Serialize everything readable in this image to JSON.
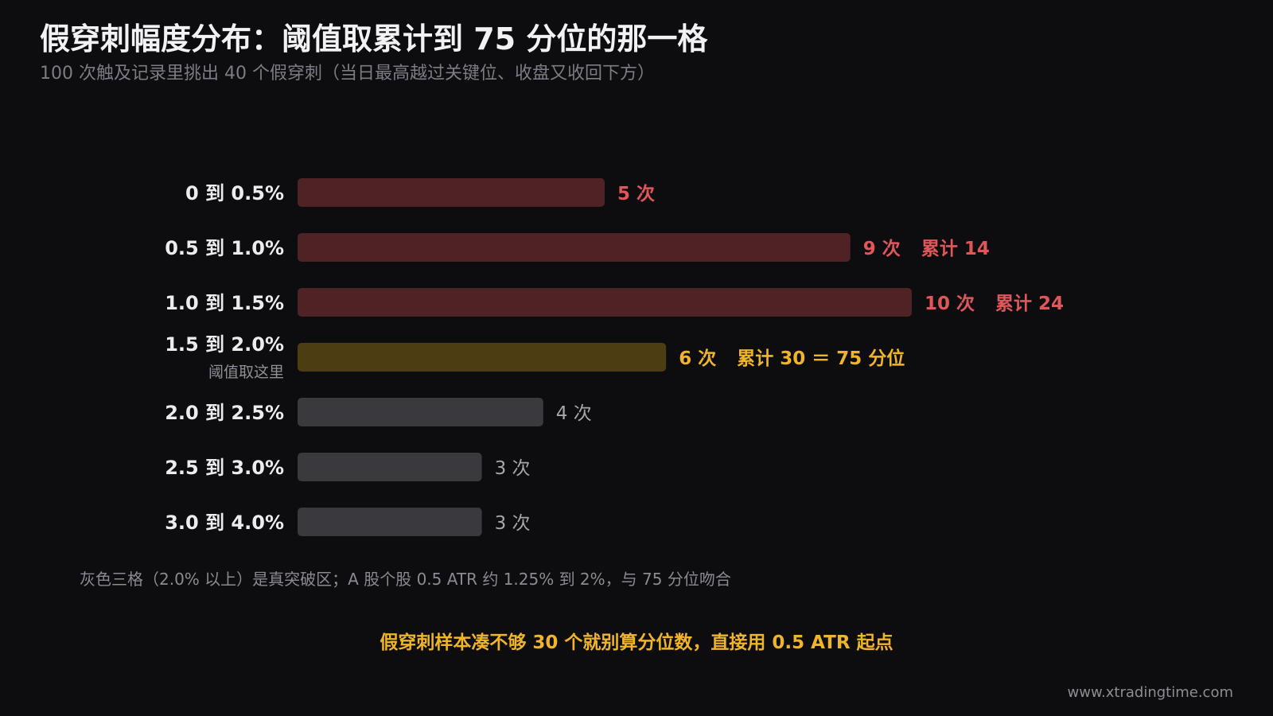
{
  "header": {
    "title": "假穿刺幅度分布：阈值取累计到 75 分位的那一格",
    "subtitle": "100 次触及记录里挑出 40 个假穿刺（当日最高越过关键位、收盘又收回下方）"
  },
  "footer": {
    "note": "灰色三格（2.0% 以上）是真突破区；A 股个股 0.5 ATR 约 1.25% 到 2%，与 75 分位吻合",
    "takeaway": "假穿刺样本凑不够 30 个就别算分位数，直接用 0.5 ATR 起点",
    "watermark": "www.xtradingtime.com"
  },
  "colors": {
    "below_threshold": "#4f2226",
    "threshold": "#4d3d12",
    "breakout": "#3a3a3e",
    "red_text": "#e0575a",
    "gold_text": "#f0b429",
    "gray_text": "#a6a6ac"
  },
  "chart_data": {
    "type": "bar",
    "orientation": "horizontal",
    "categories": [
      "0 到 0.5%",
      "0.5 到 1.0%",
      "1.0 到 1.5%",
      "1.5 到 2.0%",
      "2.0 到 2.5%",
      "2.5 到 3.0%",
      "3.0 到 4.0%"
    ],
    "values": [
      5,
      9,
      10,
      6,
      4,
      3,
      3
    ],
    "value_labels": [
      "5 次",
      "9 次",
      "10 次",
      "6 次",
      "4 次",
      "3 次",
      "3 次"
    ],
    "cumulative_labels": [
      "",
      "累计 14",
      "累计 24",
      "累计 30 ＝ 75 分位",
      "",
      "",
      ""
    ],
    "category_notes": [
      "",
      "",
      "",
      "阈值取这里",
      "",
      "",
      ""
    ],
    "groups": [
      "below_threshold",
      "below_threshold",
      "below_threshold",
      "threshold",
      "breakout",
      "breakout",
      "breakout"
    ],
    "xlim": [
      0,
      10
    ],
    "grid": false,
    "legend": "none"
  }
}
